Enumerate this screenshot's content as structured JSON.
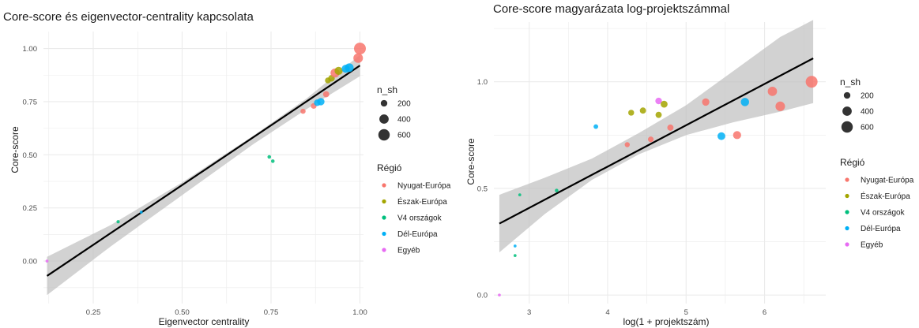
{
  "colors": {
    "Nyugat-Európa": "#F8766D",
    "Észak-Európa": "#A3A500",
    "V4 országok": "#00BF7D",
    "Dél-Európa": "#00B0F6",
    "Egyéb": "#E76BF3",
    "ribbon": "#bfbfbf",
    "line": "#000000",
    "grid": "#ebebeb"
  },
  "legends": {
    "size_title": "n_sh",
    "size_items": [
      {
        "label": "200",
        "value": 200
      },
      {
        "label": "400",
        "value": 400
      },
      {
        "label": "600",
        "value": 600
      }
    ],
    "color_title": "Régió",
    "color_items": [
      "Nyugat-Európa",
      "Észak-Európa",
      "V4 országok",
      "Dél-Európa",
      "Egyéb"
    ]
  },
  "chart_data": [
    {
      "type": "scatter",
      "title": "Core-score és eigenvector-centrality kapcsolata",
      "xlabel": "Eigenvector centrality",
      "ylabel": "Core-score",
      "xlim": [
        0.11,
        1.01
      ],
      "ylim": [
        -0.2,
        1.08
      ],
      "xticks": [
        {
          "v": 0.25,
          "label": "0.25"
        },
        {
          "v": 0.5,
          "label": "0.50"
        },
        {
          "v": 0.75,
          "label": "0.75"
        },
        {
          "v": 1.0,
          "label": "1.00"
        }
      ],
      "yticks": [
        {
          "v": 0.0,
          "label": "0.00"
        },
        {
          "v": 0.25,
          "label": "0.25"
        },
        {
          "v": 0.5,
          "label": "0.50"
        },
        {
          "v": 0.75,
          "label": "0.75"
        },
        {
          "v": 1.0,
          "label": "1.00"
        }
      ],
      "grid": true,
      "legend_position": "right",
      "fit": {
        "x": [
          0.12,
          1.0
        ],
        "y": [
          -0.07,
          0.92
        ]
      },
      "ribbon": [
        {
          "x": 0.12,
          "lo": -0.16,
          "hi": 0.02
        },
        {
          "x": 0.3,
          "lo": 0.07,
          "hi": 0.17
        },
        {
          "x": 0.5,
          "lo": 0.31,
          "hi": 0.37
        },
        {
          "x": 0.7,
          "lo": 0.55,
          "hi": 0.59
        },
        {
          "x": 0.85,
          "lo": 0.715,
          "hi": 0.765
        },
        {
          "x": 1.0,
          "lo": 0.87,
          "hi": 0.97
        }
      ],
      "points": [
        {
          "x": 0.12,
          "y": 0.0,
          "region": "Egyéb",
          "n": 40
        },
        {
          "x": 0.32,
          "y": 0.185,
          "region": "V4 országok",
          "n": 50
        },
        {
          "x": 0.385,
          "y": 0.23,
          "region": "Dél-Európa",
          "n": 40
        },
        {
          "x": 0.745,
          "y": 0.49,
          "region": "V4 országok",
          "n": 60
        },
        {
          "x": 0.755,
          "y": 0.47,
          "region": "V4 országok",
          "n": 60
        },
        {
          "x": 0.84,
          "y": 0.705,
          "region": "Nyugat-Európa",
          "n": 120
        },
        {
          "x": 0.87,
          "y": 0.73,
          "region": "Nyugat-Európa",
          "n": 150
        },
        {
          "x": 0.88,
          "y": 0.745,
          "region": "Dél-Európa",
          "n": 200
        },
        {
          "x": 0.89,
          "y": 0.75,
          "region": "Dél-Európa",
          "n": 250
        },
        {
          "x": 0.905,
          "y": 0.785,
          "region": "Nyugat-Európa",
          "n": 180
        },
        {
          "x": 0.91,
          "y": 0.85,
          "region": "Észak-Európa",
          "n": 160
        },
        {
          "x": 0.92,
          "y": 0.86,
          "region": "Észak-Európa",
          "n": 200
        },
        {
          "x": 0.93,
          "y": 0.885,
          "region": "Nyugat-Európa",
          "n": 380
        },
        {
          "x": 0.94,
          "y": 0.895,
          "region": "Észak-Európa",
          "n": 300
        },
        {
          "x": 0.96,
          "y": 0.905,
          "region": "Dél-Európa",
          "n": 300
        },
        {
          "x": 0.97,
          "y": 0.91,
          "region": "Dél-Európa",
          "n": 350
        },
        {
          "x": 0.995,
          "y": 0.955,
          "region": "Nyugat-Európa",
          "n": 420
        },
        {
          "x": 1.0,
          "y": 1.0,
          "region": "Nyugat-Európa",
          "n": 650
        }
      ]
    },
    {
      "type": "scatter",
      "title": "Core-score magyarázata log-projektszámmal",
      "xlabel": "log(1 + projektszám)",
      "ylabel": "Core-score",
      "xlim": [
        2.55,
        6.78
      ],
      "ylim": [
        -0.04,
        1.28
      ],
      "xticks": [
        {
          "v": 3,
          "label": "3"
        },
        {
          "v": 4,
          "label": "4"
        },
        {
          "v": 5,
          "label": "5"
        },
        {
          "v": 6,
          "label": "6"
        }
      ],
      "yticks": [
        {
          "v": 0.0,
          "label": "0.0"
        },
        {
          "v": 0.5,
          "label": "0.5"
        },
        {
          "v": 1.0,
          "label": "1.0"
        }
      ],
      "grid": true,
      "legend_position": "right",
      "fit": {
        "x": [
          2.62,
          6.62
        ],
        "y": [
          0.335,
          1.11
        ]
      },
      "ribbon": [
        {
          "x": 2.62,
          "lo": 0.2,
          "hi": 0.47
        },
        {
          "x": 3.2,
          "lo": 0.38,
          "hi": 0.55
        },
        {
          "x": 3.8,
          "lo": 0.54,
          "hi": 0.64
        },
        {
          "x": 4.4,
          "lo": 0.66,
          "hi": 0.76
        },
        {
          "x": 5.0,
          "lo": 0.75,
          "hi": 0.89
        },
        {
          "x": 5.6,
          "lo": 0.81,
          "hi": 1.05
        },
        {
          "x": 6.2,
          "lo": 0.86,
          "hi": 1.21
        },
        {
          "x": 6.62,
          "lo": 0.9,
          "hi": 1.29
        }
      ],
      "points": [
        {
          "x": 2.62,
          "y": 0.0,
          "region": "Egyéb",
          "n": 40
        },
        {
          "x": 2.82,
          "y": 0.23,
          "region": "Dél-Európa",
          "n": 40
        },
        {
          "x": 2.82,
          "y": 0.185,
          "region": "V4 országok",
          "n": 40
        },
        {
          "x": 2.88,
          "y": 0.47,
          "region": "V4 országok",
          "n": 40
        },
        {
          "x": 3.35,
          "y": 0.49,
          "region": "V4 országok",
          "n": 60
        },
        {
          "x": 3.85,
          "y": 0.79,
          "region": "Dél-Európa",
          "n": 100
        },
        {
          "x": 4.25,
          "y": 0.705,
          "region": "Nyugat-Európa",
          "n": 120
        },
        {
          "x": 4.3,
          "y": 0.855,
          "region": "Észak-Európa",
          "n": 160
        },
        {
          "x": 4.45,
          "y": 0.865,
          "region": "Észak-Európa",
          "n": 180
        },
        {
          "x": 4.55,
          "y": 0.73,
          "region": "Nyugat-Európa",
          "n": 150
        },
        {
          "x": 4.65,
          "y": 0.845,
          "region": "Észak-Európa",
          "n": 180
        },
        {
          "x": 4.65,
          "y": 0.91,
          "region": "Egyéb",
          "n": 200
        },
        {
          "x": 4.72,
          "y": 0.895,
          "region": "Észak-Európa",
          "n": 220
        },
        {
          "x": 4.8,
          "y": 0.785,
          "region": "Nyugat-Európa",
          "n": 180
        },
        {
          "x": 5.25,
          "y": 0.905,
          "region": "Nyugat-Európa",
          "n": 250
        },
        {
          "x": 5.45,
          "y": 0.745,
          "region": "Dél-Európa",
          "n": 280
        },
        {
          "x": 5.65,
          "y": 0.75,
          "region": "Nyugat-Európa",
          "n": 300
        },
        {
          "x": 5.75,
          "y": 0.905,
          "region": "Dél-Európa",
          "n": 320
        },
        {
          "x": 6.1,
          "y": 0.955,
          "region": "Nyugat-Európa",
          "n": 400
        },
        {
          "x": 6.2,
          "y": 0.885,
          "region": "Nyugat-Európa",
          "n": 420
        },
        {
          "x": 6.6,
          "y": 1.0,
          "region": "Nyugat-Európa",
          "n": 650
        }
      ]
    }
  ]
}
